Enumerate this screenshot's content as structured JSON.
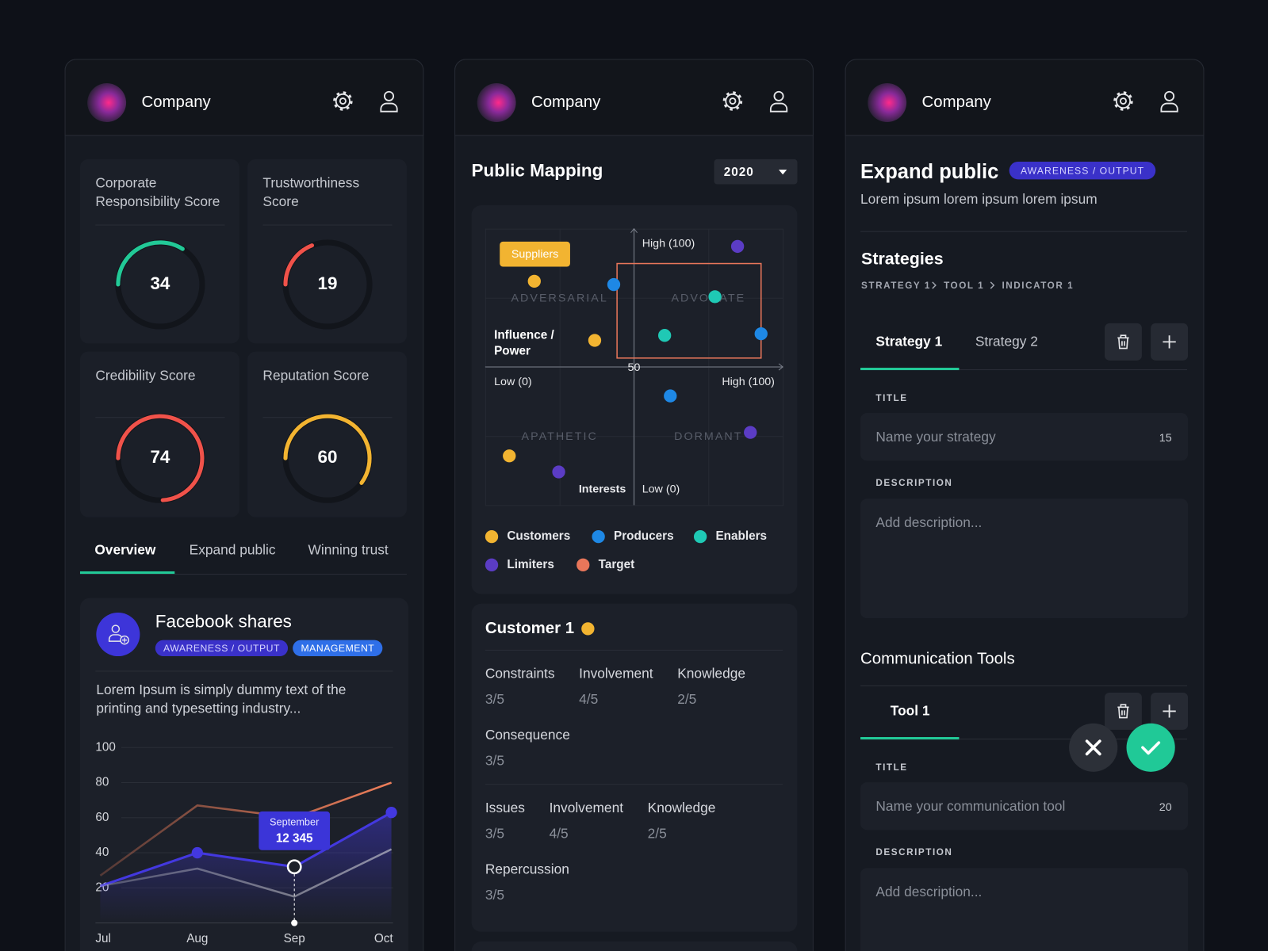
{
  "panels": [
    {
      "company": "Company"
    },
    {
      "company": "Company"
    },
    {
      "company": "Company"
    }
  ],
  "overview": {
    "scores": {
      "range": [
        0,
        100
      ],
      "items": [
        {
          "label": "Corporate Responsibility Score",
          "value": 34,
          "color": "#22c997"
        },
        {
          "label": "Trustworthiness Score",
          "value": 19,
          "color": "#f0524a"
        },
        {
          "label": "Credibility Score",
          "value": 74,
          "color": "#f0524a"
        },
        {
          "label": "Reputation Score",
          "value": 60,
          "color": "#f3b431"
        }
      ]
    },
    "tabs": [
      "Overview",
      "Expand public",
      "Winning trust"
    ],
    "card": {
      "title": "Facebook shares",
      "tags": [
        "AWARENESS / OUTPUT",
        "MANAGEMENT"
      ],
      "text": "Lorem Ipsum is simply dummy text of the printing and typesetting industry..."
    }
  },
  "chart_data": [
    {
      "type": "line",
      "categories": [
        "Jul",
        "Aug",
        "Sep",
        "Oct"
      ],
      "ylim": [
        0,
        100
      ],
      "yticks": [
        20,
        40,
        60,
        80,
        100
      ],
      "grid": true,
      "series": [
        {
          "color": "#4338e0",
          "values": [
            21,
            40,
            32,
            63
          ]
        },
        {
          "color": "#f07f5a",
          "values": [
            27,
            67,
            60,
            80
          ]
        },
        {
          "color": "#c8c9d0",
          "values": [
            21,
            31,
            15,
            42
          ]
        }
      ],
      "tooltip": {
        "title": "September",
        "value": "12 345"
      }
    },
    {
      "type": "scatter",
      "xlim": [
        0,
        100
      ],
      "ylim": [
        0,
        100
      ],
      "xticks": [
        {
          "value": 0,
          "label": "Low (0)"
        },
        50,
        {
          "value": 100,
          "label": "High (100)"
        }
      ],
      "yticks": [
        {
          "value": 0,
          "label": "Low (0)"
        },
        {
          "value": 100,
          "label": "High (100)"
        }
      ],
      "x_label": "Interests",
      "y_label": "Influence / Power",
      "quadrants": [
        "ADVERSARIAL",
        "ADVOCATE",
        "APATHETIC",
        "DORMANT"
      ],
      "annotation": "Suppliers",
      "series": [
        {
          "name": "Customers",
          "color": "#f2b431",
          "x": [
            16.5,
            36.8,
            8.1
          ],
          "y": [
            81,
            59.6,
            17.8
          ]
        },
        {
          "name": "Producers",
          "color": "#1e88e5",
          "x": [
            43.2,
            92.7,
            62.2
          ],
          "y": [
            79.8,
            62.0,
            39.5
          ]
        },
        {
          "name": "Enablers",
          "color": "#1fc9b5",
          "x": [
            77.2,
            60.3
          ],
          "y": [
            75.4,
            61.4
          ]
        },
        {
          "name": "Limiters",
          "color": "#5b3cc4",
          "x": [
            84.8,
            89.1,
            24.7
          ],
          "y": [
            93.6,
            26.3,
            12.0
          ]
        },
        {
          "name": "Target",
          "color": "#e8765a",
          "x": [
            44.3,
            92.7
          ],
          "y": [
            53.2,
            87.4
          ]
        }
      ]
    }
  ],
  "mapping": {
    "title": "Public Mapping",
    "year": "2020",
    "customer": {
      "title": "Customer 1",
      "groups": [
        [
          {
            "label": "Constraints",
            "value": "3/5"
          },
          {
            "label": "Involvement",
            "value": "4/5"
          },
          {
            "label": "Knowledge",
            "value": "2/5"
          },
          {
            "label": "Consequence",
            "value": "3/5"
          }
        ],
        [
          {
            "label": "Issues",
            "value": "3/5"
          },
          {
            "label": "Involvement",
            "value": "4/5"
          },
          {
            "label": "Knowledge",
            "value": "2/5"
          },
          {
            "label": "Repercussion",
            "value": "3/5"
          }
        ]
      ]
    }
  },
  "expand": {
    "title": "Expand public",
    "tag": "AWARENESS / OUTPUT",
    "subtitle": "Lorem ipsum lorem ipsum lorem ipsum",
    "strategies": {
      "title": "Strategies",
      "breadcrumb": [
        "STRATEGY 1",
        "TOOL 1",
        "INDICATOR 1"
      ],
      "tabs": [
        "Strategy 1",
        "Strategy 2"
      ],
      "title_label": "TITLE",
      "title_placeholder": "Name your strategy",
      "title_count": 15,
      "description_label": "DESCRIPTION",
      "description_placeholder": "Add description..."
    },
    "tools": {
      "title": "Communication Tools",
      "tabs": [
        "Tool 1"
      ],
      "title_label": "TITLE",
      "title_placeholder": "Name your communication tool",
      "title_count": 20,
      "description_label": "DESCRIPTION",
      "description_placeholder": "Add description..."
    }
  }
}
